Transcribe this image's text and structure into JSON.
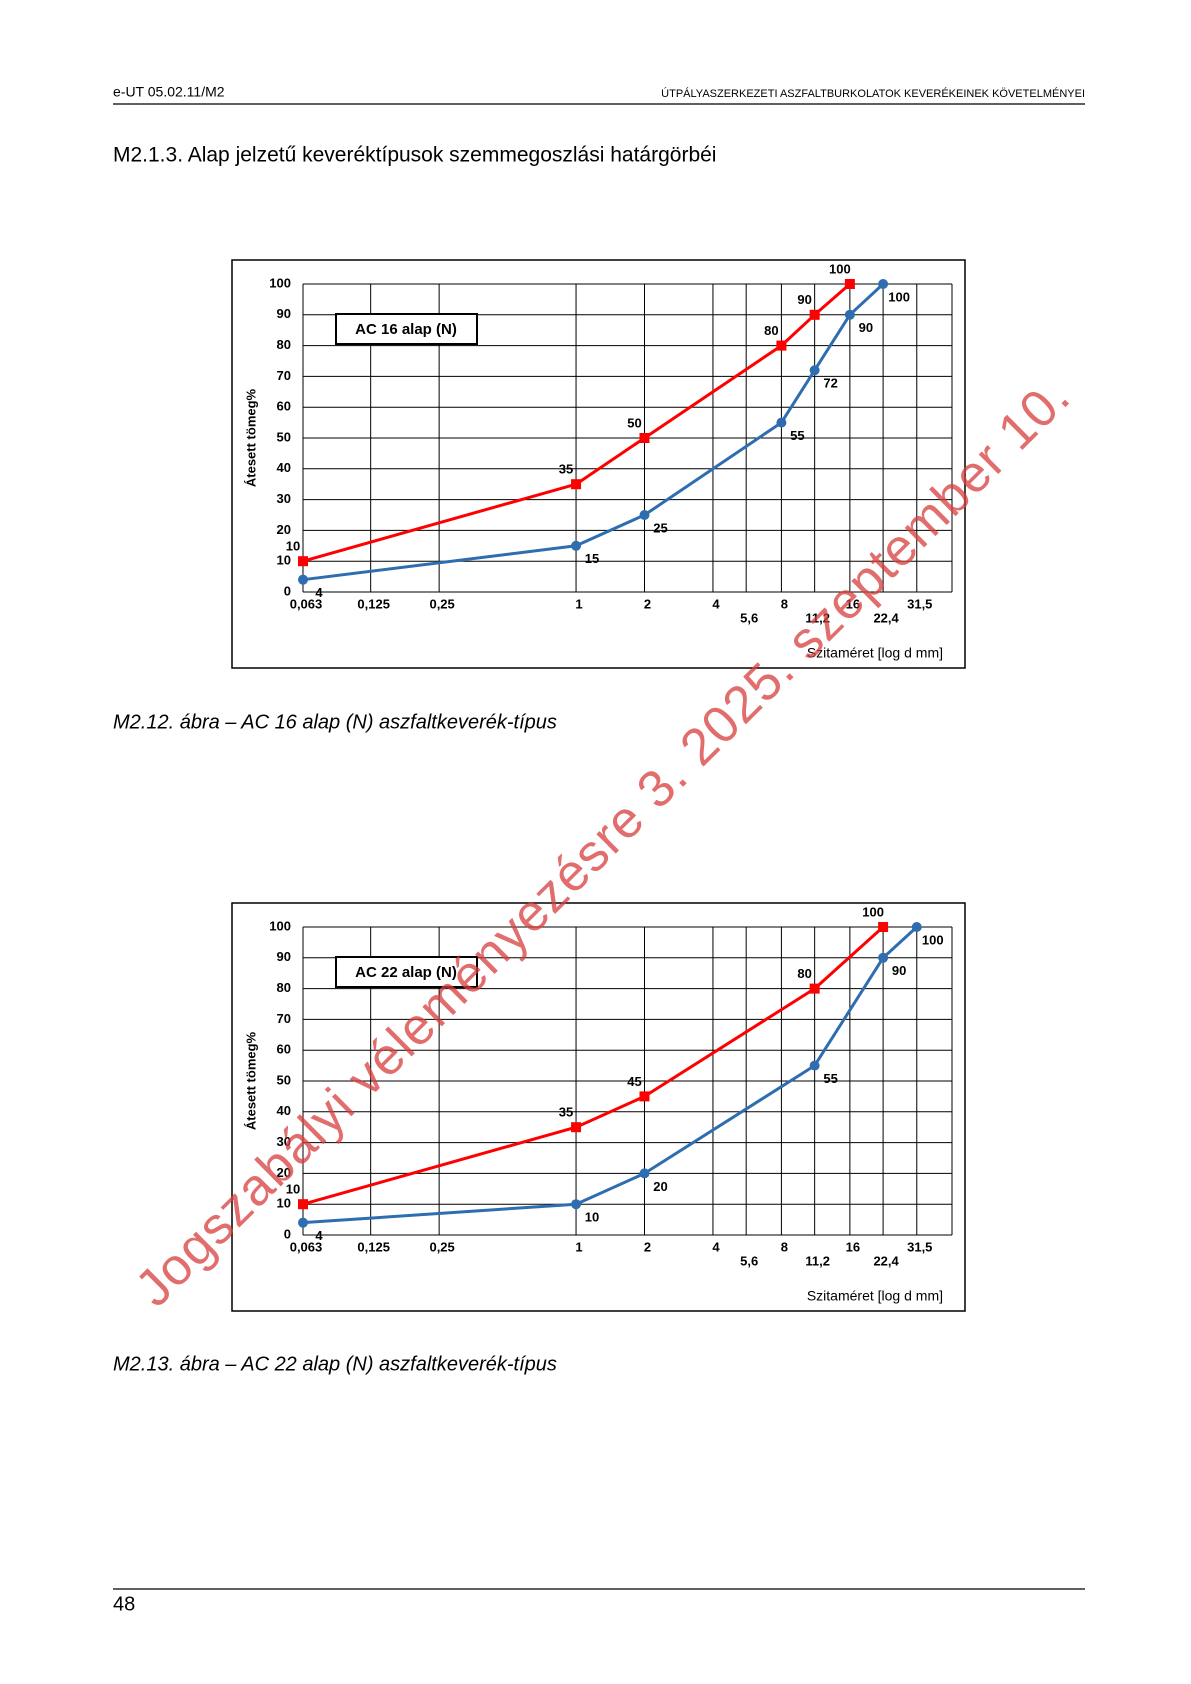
{
  "header": {
    "left": "e-UT 05.02.11/M2",
    "right": "ÚTPÁLYASZERKEZETI ASZFALTBURKOLATOK KEVERÉKEINEK KÖVETELMÉNYEI"
  },
  "section_title": "M2.1.3. Alap jelzetű keveréktípusok szemmegoszlási határgörbéi",
  "captions": [
    "M2.12. ábra – AC 16 alap (N) aszfaltkeverék-típus",
    "M2.13. ábra – AC 22 alap (N) aszfaltkeverék-típus"
  ],
  "watermark": "Jogszabályi véleményezésre 3. 2025. szeptember 10.",
  "page_number": "48",
  "chart_data": [
    {
      "type": "line",
      "title": "AC 16 alap (N)",
      "xlabel": "Szitaméret [log d mm]",
      "ylabel": "Átesett tömeg%",
      "log_x": true,
      "grid": true,
      "xlim": [
        0.063,
        45
      ],
      "ylim": [
        0,
        100
      ],
      "xticks": [
        {
          "value": 0.063,
          "label": "0,063"
        },
        {
          "value": 0.125,
          "label": "0,125"
        },
        {
          "value": 0.25,
          "label": "0,25"
        },
        1,
        2,
        4,
        {
          "value": 5.6,
          "label": "5,6"
        },
        8,
        {
          "value": 11.2,
          "label": "11,2"
        },
        16,
        {
          "value": 22.4,
          "label": "22,4"
        },
        {
          "value": 31.5,
          "label": "31,5"
        }
      ],
      "yticks": [
        0,
        10,
        20,
        30,
        40,
        50,
        60,
        70,
        80,
        90,
        100
      ],
      "series": [
        {
          "color": "#ff0000",
          "marker": "square",
          "x": [
            0.063,
            1,
            2,
            8,
            11.2,
            16
          ],
          "values": [
            10,
            35,
            50,
            80,
            90,
            100
          ]
        },
        {
          "color": "#2e6db0",
          "marker": "circle",
          "x": [
            0.063,
            1,
            2,
            8,
            11.2,
            16,
            22.4
          ],
          "values": [
            4,
            15,
            25,
            55,
            72,
            90,
            100
          ]
        }
      ]
    },
    {
      "type": "line",
      "title": "AC 22 alap (N)",
      "xlabel": "Szitaméret [log d mm]",
      "ylabel": "Átesett tömeg%",
      "log_x": true,
      "grid": true,
      "xlim": [
        0.063,
        45
      ],
      "ylim": [
        0,
        100
      ],
      "xticks": [
        {
          "value": 0.063,
          "label": "0,063"
        },
        {
          "value": 0.125,
          "label": "0,125"
        },
        {
          "value": 0.25,
          "label": "0,25"
        },
        1,
        2,
        4,
        {
          "value": 5.6,
          "label": "5,6"
        },
        8,
        {
          "value": 11.2,
          "label": "11,2"
        },
        16,
        {
          "value": 22.4,
          "label": "22,4"
        },
        {
          "value": 31.5,
          "label": "31,5"
        }
      ],
      "yticks": [
        0,
        10,
        20,
        30,
        40,
        50,
        60,
        70,
        80,
        90,
        100
      ],
      "series": [
        {
          "color": "#ff0000",
          "marker": "square",
          "x": [
            0.063,
            1,
            2,
            11.2,
            22.4
          ],
          "values": [
            10,
            35,
            45,
            80,
            100
          ]
        },
        {
          "color": "#2e6db0",
          "marker": "circle",
          "x": [
            0.063,
            1,
            2,
            11.2,
            22.4,
            31.5
          ],
          "values": [
            4,
            10,
            20,
            55,
            90,
            100
          ]
        }
      ]
    }
  ]
}
